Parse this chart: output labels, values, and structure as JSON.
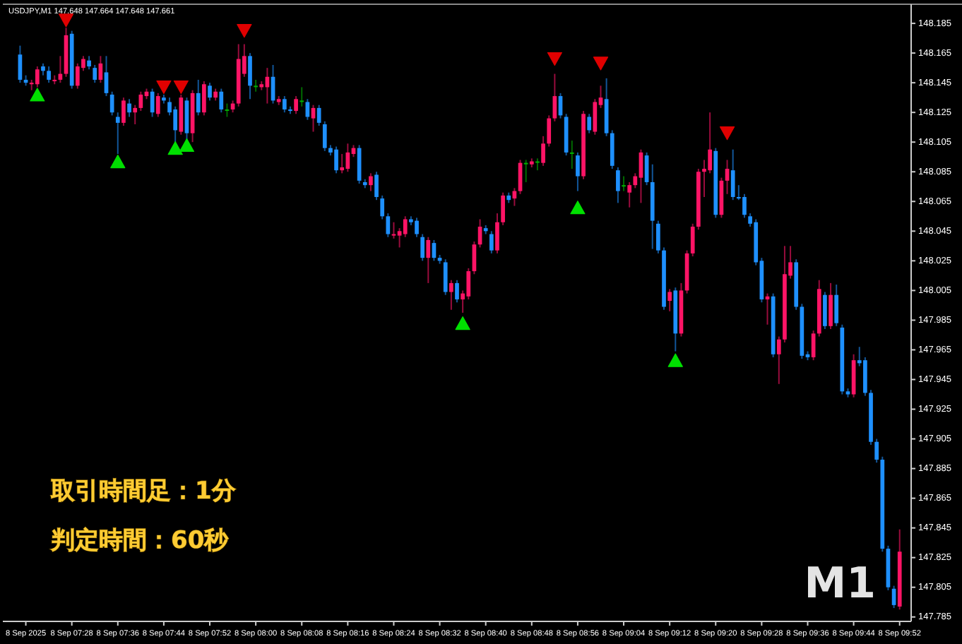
{
  "chart_data": {
    "type": "candlestick",
    "title": "USDJPY,M1  147.648 147.664 147.648 147.661",
    "annotations": [
      "取引時間足：1分",
      "判定時間：60秒",
      "M1"
    ],
    "x": [
      "2025-09-08T07:19",
      "2025-09-08T07:20",
      "2025-09-08T07:21",
      "2025-09-08T07:22",
      "2025-09-08T07:23",
      "2025-09-08T07:24",
      "2025-09-08T07:25",
      "2025-09-08T07:26",
      "2025-09-08T07:27",
      "2025-09-08T07:28",
      "2025-09-08T07:29",
      "2025-09-08T07:30",
      "2025-09-08T07:31",
      "2025-09-08T07:32",
      "2025-09-08T07:33",
      "2025-09-08T07:34",
      "2025-09-08T07:35",
      "2025-09-08T07:36",
      "2025-09-08T07:37",
      "2025-09-08T07:38",
      "2025-09-08T07:39",
      "2025-09-08T07:40",
      "2025-09-08T07:41",
      "2025-09-08T07:42",
      "2025-09-08T07:43",
      "2025-09-08T07:44",
      "2025-09-08T07:45",
      "2025-09-08T07:46",
      "2025-09-08T07:47",
      "2025-09-08T07:48",
      "2025-09-08T07:49",
      "2025-09-08T07:50",
      "2025-09-08T07:51",
      "2025-09-08T07:52",
      "2025-09-08T07:53",
      "2025-09-08T07:54",
      "2025-09-08T07:55",
      "2025-09-08T07:56",
      "2025-09-08T07:57",
      "2025-09-08T07:58",
      "2025-09-08T07:59",
      "2025-09-08T08:00",
      "2025-09-08T08:01",
      "2025-09-08T08:02",
      "2025-09-08T08:03",
      "2025-09-08T08:04",
      "2025-09-08T08:05",
      "2025-09-08T08:06",
      "2025-09-08T08:07",
      "2025-09-08T08:08",
      "2025-09-08T08:09",
      "2025-09-08T08:10",
      "2025-09-08T08:11",
      "2025-09-08T08:12",
      "2025-09-08T08:13",
      "2025-09-08T08:14",
      "2025-09-08T08:15",
      "2025-09-08T08:16",
      "2025-09-08T08:17",
      "2025-09-08T08:18",
      "2025-09-08T08:19",
      "2025-09-08T08:20",
      "2025-09-08T08:21",
      "2025-09-08T08:22",
      "2025-09-08T08:23",
      "2025-09-08T08:24",
      "2025-09-08T08:25",
      "2025-09-08T08:26",
      "2025-09-08T08:27",
      "2025-09-08T08:28",
      "2025-09-08T08:29",
      "2025-09-08T08:30",
      "2025-09-08T08:31",
      "2025-09-08T08:32",
      "2025-09-08T08:33",
      "2025-09-08T08:34",
      "2025-09-08T08:35",
      "2025-09-08T08:36",
      "2025-09-08T08:37",
      "2025-09-08T08:38",
      "2025-09-08T08:39",
      "2025-09-08T08:40",
      "2025-09-08T08:41",
      "2025-09-08T08:42",
      "2025-09-08T08:43",
      "2025-09-08T08:44",
      "2025-09-08T08:45",
      "2025-09-08T08:46",
      "2025-09-08T08:47",
      "2025-09-08T08:48",
      "2025-09-08T08:49",
      "2025-09-08T08:50",
      "2025-09-08T08:51",
      "2025-09-08T08:52",
      "2025-09-08T08:53",
      "2025-09-08T08:54",
      "2025-09-08T08:55",
      "2025-09-08T08:56",
      "2025-09-08T08:57",
      "2025-09-08T08:58",
      "2025-09-08T08:59",
      "2025-09-08T09:00",
      "2025-09-08T09:01",
      "2025-09-08T09:02",
      "2025-09-08T09:03",
      "2025-09-08T09:04",
      "2025-09-08T09:05",
      "2025-09-08T09:06",
      "2025-09-08T09:07",
      "2025-09-08T09:08",
      "2025-09-08T09:09",
      "2025-09-08T09:10",
      "2025-09-08T09:11",
      "2025-09-08T09:12",
      "2025-09-08T09:13",
      "2025-09-08T09:14",
      "2025-09-08T09:15",
      "2025-09-08T09:16",
      "2025-09-08T09:17",
      "2025-09-08T09:18",
      "2025-09-08T09:19",
      "2025-09-08T09:20",
      "2025-09-08T09:21",
      "2025-09-08T09:22",
      "2025-09-08T09:23",
      "2025-09-08T09:24",
      "2025-09-08T09:25",
      "2025-09-08T09:26",
      "2025-09-08T09:27",
      "2025-09-08T09:28",
      "2025-09-08T09:29",
      "2025-09-08T09:30",
      "2025-09-08T09:31",
      "2025-09-08T09:32",
      "2025-09-08T09:33",
      "2025-09-08T09:34",
      "2025-09-08T09:35",
      "2025-09-08T09:36",
      "2025-09-08T09:37",
      "2025-09-08T09:38",
      "2025-09-08T09:39",
      "2025-09-08T09:40",
      "2025-09-08T09:41",
      "2025-09-08T09:42",
      "2025-09-08T09:43",
      "2025-09-08T09:44",
      "2025-09-08T09:45",
      "2025-09-08T09:46",
      "2025-09-08T09:47",
      "2025-09-08T09:48",
      "2025-09-08T09:49",
      "2025-09-08T09:50",
      "2025-09-08T09:51",
      "2025-09-08T09:52"
    ],
    "ohlc": [
      [
        148.164,
        148.17,
        148.145,
        148.147
      ],
      [
        148.147,
        148.15,
        148.143,
        148.145
      ],
      [
        148.144,
        148.147,
        148.14,
        148.145
      ],
      [
        148.144,
        148.156,
        148.142,
        148.154
      ],
      [
        148.156,
        148.158,
        148.15,
        148.153
      ],
      [
        148.153,
        148.156,
        148.145,
        148.147
      ],
      [
        148.146,
        148.15,
        148.144,
        148.147
      ],
      [
        148.147,
        148.163,
        148.145,
        148.151
      ],
      [
        148.151,
        148.182,
        148.149,
        148.177
      ],
      [
        148.178,
        148.18,
        148.141,
        148.143
      ],
      [
        148.143,
        148.158,
        148.141,
        148.156
      ],
      [
        148.155,
        148.163,
        148.153,
        148.161
      ],
      [
        148.16,
        148.163,
        148.154,
        148.156
      ],
      [
        148.155,
        148.157,
        148.145,
        148.147
      ],
      [
        148.147,
        148.163,
        148.145,
        148.158
      ],
      [
        148.152,
        148.163,
        148.136,
        148.138
      ],
      [
        148.137,
        148.139,
        148.123,
        148.125
      ],
      [
        148.122,
        148.125,
        148.097,
        148.118
      ],
      [
        148.118,
        148.135,
        148.116,
        148.133
      ],
      [
        148.131,
        148.134,
        148.122,
        148.125
      ],
      [
        148.125,
        148.13,
        148.117,
        148.128
      ],
      [
        148.128,
        148.139,
        148.126,
        148.137
      ],
      [
        148.136,
        148.141,
        148.134,
        148.139
      ],
      [
        148.139,
        148.141,
        148.122,
        148.125
      ],
      [
        148.124,
        148.138,
        148.122,
        148.136
      ],
      [
        148.135,
        148.137,
        148.131,
        148.133
      ],
      [
        148.132,
        148.135,
        148.123,
        148.125
      ],
      [
        148.127,
        148.129,
        148.105,
        148.113
      ],
      [
        148.112,
        148.137,
        148.11,
        148.135
      ],
      [
        148.133,
        148.135,
        148.105,
        148.111
      ],
      [
        148.111,
        148.14,
        148.105,
        148.138
      ],
      [
        148.138,
        148.147,
        148.123,
        148.125
      ],
      [
        148.125,
        148.146,
        148.123,
        148.144
      ],
      [
        148.143,
        148.145,
        148.133,
        148.135
      ],
      [
        148.135,
        148.141,
        148.133,
        148.139
      ],
      [
        148.139,
        148.141,
        148.125,
        148.127
      ],
      [
        148.127,
        148.131,
        148.122,
        148.127
      ],
      [
        148.127,
        148.133,
        148.125,
        148.131
      ],
      [
        148.131,
        148.171,
        148.129,
        148.161
      ],
      [
        148.151,
        148.171,
        148.149,
        148.163
      ],
      [
        148.163,
        148.165,
        148.134,
        148.143
      ],
      [
        148.143,
        148.147,
        148.139,
        148.143
      ],
      [
        148.142,
        148.146,
        148.14,
        148.144
      ],
      [
        148.142,
        148.155,
        148.131,
        148.149
      ],
      [
        148.149,
        148.157,
        148.131,
        148.133
      ],
      [
        148.132,
        148.136,
        148.13,
        148.134
      ],
      [
        148.134,
        148.136,
        148.125,
        148.127
      ],
      [
        148.127,
        148.129,
        148.124,
        148.126
      ],
      [
        148.126,
        148.136,
        148.124,
        148.134
      ],
      [
        148.133,
        148.142,
        148.129,
        148.133
      ],
      [
        148.132,
        148.134,
        148.12,
        148.122
      ],
      [
        148.121,
        148.13,
        148.112,
        148.128
      ],
      [
        148.128,
        148.13,
        148.116,
        148.118
      ],
      [
        148.117,
        148.119,
        148.099,
        148.101
      ],
      [
        148.101,
        148.103,
        148.096,
        148.098
      ],
      [
        148.1,
        148.102,
        148.084,
        148.086
      ],
      [
        148.086,
        148.097,
        148.084,
        148.088
      ],
      [
        148.087,
        148.104,
        148.085,
        148.098
      ],
      [
        148.097,
        148.103,
        148.095,
        148.101
      ],
      [
        148.101,
        148.103,
        148.077,
        148.079
      ],
      [
        148.078,
        148.08,
        148.074,
        148.076
      ],
      [
        148.076,
        148.084,
        148.072,
        148.082
      ],
      [
        148.083,
        148.085,
        148.066,
        148.068
      ],
      [
        148.067,
        148.069,
        148.053,
        148.055
      ],
      [
        148.055,
        148.057,
        148.041,
        148.043
      ],
      [
        148.042,
        148.051,
        148.04,
        148.043
      ],
      [
        148.042,
        148.047,
        148.034,
        148.045
      ],
      [
        148.043,
        148.055,
        148.041,
        148.053
      ],
      [
        148.053,
        148.055,
        148.049,
        148.051
      ],
      [
        148.052,
        148.054,
        148.041,
        148.043
      ],
      [
        148.041,
        148.043,
        148.025,
        148.027
      ],
      [
        148.027,
        148.041,
        148.01,
        148.039
      ],
      [
        148.037,
        148.039,
        148.025,
        148.027
      ],
      [
        148.027,
        148.029,
        148.023,
        148.025
      ],
      [
        148.024,
        148.026,
        148.002,
        148.004
      ],
      [
        148.004,
        148.012,
        147.992,
        148.01
      ],
      [
        148.01,
        148.012,
        147.997,
        147.999
      ],
      [
        147.999,
        148.005,
        147.99,
        148.003
      ],
      [
        148.001,
        148.02,
        147.999,
        148.018
      ],
      [
        148.018,
        148.038,
        148.016,
        148.036
      ],
      [
        148.036,
        148.053,
        148.034,
        148.048
      ],
      [
        148.047,
        148.049,
        148.043,
        148.045
      ],
      [
        148.043,
        148.045,
        148.03,
        148.032
      ],
      [
        148.032,
        148.057,
        148.03,
        148.051
      ],
      [
        148.051,
        148.071,
        148.049,
        148.069
      ],
      [
        148.069,
        148.071,
        148.064,
        148.066
      ],
      [
        148.067,
        148.074,
        148.062,
        148.072
      ],
      [
        148.072,
        148.093,
        148.07,
        148.091
      ],
      [
        148.091,
        148.093,
        148.078,
        148.091
      ],
      [
        148.09,
        148.094,
        148.088,
        148.092
      ],
      [
        148.092,
        148.094,
        148.086,
        148.092
      ],
      [
        148.091,
        148.109,
        148.089,
        148.104
      ],
      [
        148.104,
        148.123,
        148.102,
        148.121
      ],
      [
        148.121,
        148.151,
        148.119,
        148.136
      ],
      [
        148.136,
        148.138,
        148.121,
        148.123
      ],
      [
        148.122,
        148.124,
        148.096,
        148.098
      ],
      [
        148.098,
        148.106,
        148.087,
        148.098
      ],
      [
        148.096,
        148.098,
        148.072,
        148.082
      ],
      [
        148.082,
        148.126,
        148.08,
        148.124
      ],
      [
        148.122,
        148.124,
        148.111,
        148.113
      ],
      [
        148.112,
        148.134,
        148.11,
        148.132
      ],
      [
        148.13,
        148.143,
        148.128,
        148.135
      ],
      [
        148.134,
        148.148,
        148.109,
        148.111
      ],
      [
        148.111,
        148.113,
        148.087,
        148.089
      ],
      [
        148.086,
        148.088,
        148.064,
        148.072
      ],
      [
        148.076,
        148.082,
        148.072,
        148.076
      ],
      [
        148.071,
        148.078,
        148.061,
        148.076
      ],
      [
        148.076,
        148.084,
        148.074,
        148.082
      ],
      [
        148.081,
        148.1,
        148.064,
        148.098
      ],
      [
        148.096,
        148.098,
        148.076,
        148.078
      ],
      [
        148.078,
        148.09,
        148.033,
        148.052
      ],
      [
        148.05,
        148.052,
        148.03,
        148.032
      ],
      [
        148.032,
        148.034,
        147.992,
        147.994
      ],
      [
        147.998,
        148.006,
        147.991,
        148.004
      ],
      [
        148.005,
        148.007,
        147.964,
        147.976
      ],
      [
        147.976,
        148.01,
        147.974,
        148.005
      ],
      [
        148.005,
        148.032,
        148.003,
        148.03
      ],
      [
        148.03,
        148.05,
        148.028,
        148.048
      ],
      [
        148.048,
        148.087,
        148.046,
        148.085
      ],
      [
        148.085,
        148.093,
        148.068,
        148.087
      ],
      [
        148.086,
        148.125,
        148.084,
        148.1
      ],
      [
        148.099,
        148.101,
        148.054,
        148.056
      ],
      [
        148.056,
        148.081,
        148.054,
        148.079
      ],
      [
        148.079,
        148.093,
        148.07,
        148.087
      ],
      [
        148.086,
        148.1,
        148.066,
        148.068
      ],
      [
        148.068,
        148.076,
        148.066,
        148.067
      ],
      [
        148.068,
        148.07,
        148.054,
        148.056
      ],
      [
        148.055,
        148.057,
        148.048,
        148.05
      ],
      [
        148.051,
        148.053,
        148.022,
        148.024
      ],
      [
        148.025,
        148.027,
        147.997,
        147.999
      ],
      [
        147.999,
        148.003,
        147.982,
        148.001
      ],
      [
        148.001,
        148.003,
        147.96,
        147.962
      ],
      [
        147.962,
        147.974,
        147.942,
        147.972
      ],
      [
        147.972,
        148.035,
        147.97,
        148.016
      ],
      [
        148.015,
        148.035,
        148.013,
        148.024
      ],
      [
        148.024,
        148.026,
        147.992,
        147.994
      ],
      [
        147.994,
        147.996,
        147.959,
        147.961
      ],
      [
        147.962,
        147.964,
        147.958,
        147.96
      ],
      [
        147.96,
        147.978,
        147.958,
        147.976
      ],
      [
        147.976,
        148.012,
        147.974,
        148.006
      ],
      [
        148.002,
        148.004,
        147.979,
        147.981
      ],
      [
        147.981,
        148.01,
        147.979,
        148.002
      ],
      [
        148.002,
        148.009,
        147.981,
        147.983
      ],
      [
        147.98,
        147.982,
        147.935,
        147.937
      ],
      [
        147.937,
        147.939,
        147.933,
        147.935
      ],
      [
        147.935,
        147.962,
        147.933,
        147.958
      ],
      [
        147.958,
        147.967,
        147.954,
        147.956
      ],
      [
        147.958,
        147.96,
        147.934,
        147.936
      ],
      [
        147.936,
        147.938,
        147.901,
        147.903
      ],
      [
        147.903,
        147.905,
        147.889,
        147.891
      ],
      [
        147.891,
        147.893,
        147.829,
        147.831
      ],
      [
        147.831,
        147.833,
        147.803,
        147.805
      ],
      [
        147.804,
        147.806,
        147.791,
        147.793
      ],
      [
        147.792,
        147.844,
        147.79,
        147.829
      ]
    ],
    "colors": [
      "#1e90ff",
      "#1e90ff",
      "#ff1466",
      "#ff1466",
      "#1e90ff",
      "#1e90ff",
      "#ff1466",
      "#ff1466",
      "#ff1466",
      "#1e90ff",
      "#ff1466",
      "#ff1466",
      "#1e90ff",
      "#1e90ff",
      "#ff1466",
      "#1e90ff",
      "#1e90ff",
      "#1e90ff",
      "#ff1466",
      "#1e90ff",
      "#ff1466",
      "#ff1466",
      "#ff1466",
      "#1e90ff",
      "#ff1466",
      "#1e90ff",
      "#1e90ff",
      "#1e90ff",
      "#ff1466",
      "#1e90ff",
      "#ff1466",
      "#1e90ff",
      "#ff1466",
      "#1e90ff",
      "#ff1466",
      "#1e90ff",
      "#00b000",
      "#ff1466",
      "#ff1466",
      "#ff1466",
      "#1e90ff",
      "#00b000",
      "#ff1466",
      "#ff1466",
      "#1e90ff",
      "#ff1466",
      "#1e90ff",
      "#1e90ff",
      "#ff1466",
      "#00b000",
      "#1e90ff",
      "#ff1466",
      "#1e90ff",
      "#1e90ff",
      "#1e90ff",
      "#1e90ff",
      "#ff1466",
      "#ff1466",
      "#ff1466",
      "#1e90ff",
      "#1e90ff",
      "#ff1466",
      "#1e90ff",
      "#1e90ff",
      "#1e90ff",
      "#ff1466",
      "#ff1466",
      "#ff1466",
      "#1e90ff",
      "#1e90ff",
      "#1e90ff",
      "#ff1466",
      "#1e90ff",
      "#1e90ff",
      "#1e90ff",
      "#ff1466",
      "#1e90ff",
      "#ff1466",
      "#ff1466",
      "#ff1466",
      "#ff1466",
      "#1e90ff",
      "#1e90ff",
      "#ff1466",
      "#ff1466",
      "#1e90ff",
      "#ff1466",
      "#ff1466",
      "#00b000",
      "#ff1466",
      "#00b000",
      "#ff1466",
      "#ff1466",
      "#ff1466",
      "#1e90ff",
      "#1e90ff",
      "#00b000",
      "#1e90ff",
      "#ff1466",
      "#1e90ff",
      "#ff1466",
      "#ff1466",
      "#1e90ff",
      "#1e90ff",
      "#1e90ff",
      "#00b000",
      "#ff1466",
      "#ff1466",
      "#ff1466",
      "#1e90ff",
      "#1e90ff",
      "#1e90ff",
      "#1e90ff",
      "#ff1466",
      "#1e90ff",
      "#ff1466",
      "#ff1466",
      "#ff1466",
      "#ff1466",
      "#ff1466",
      "#ff1466",
      "#1e90ff",
      "#ff1466",
      "#ff1466",
      "#1e90ff",
      "#1e90ff",
      "#1e90ff",
      "#1e90ff",
      "#1e90ff",
      "#1e90ff",
      "#ff1466",
      "#1e90ff",
      "#ff1466",
      "#ff1466",
      "#ff1466",
      "#1e90ff",
      "#1e90ff",
      "#1e90ff",
      "#ff1466",
      "#ff1466",
      "#1e90ff",
      "#ff1466",
      "#1e90ff",
      "#1e90ff",
      "#1e90ff",
      "#ff1466",
      "#1e90ff",
      "#1e90ff",
      "#1e90ff",
      "#1e90ff",
      "#1e90ff",
      "#1e90ff",
      "#1e90ff",
      "#ff1466"
    ],
    "series": [
      {
        "type": "scatter",
        "color": "#e00000",
        "marker": "triangle",
        "x": [
          "2025-09-08T07:27",
          "2025-09-08T07:44",
          "2025-09-08T07:47",
          "2025-09-08T07:58",
          "2025-09-08T08:52",
          "2025-09-08T09:00",
          "2025-09-08T09:22"
        ],
        "values": [
          148.187,
          148.142,
          148.142,
          148.18,
          148.161,
          148.158,
          148.111
        ]
      },
      {
        "type": "scatter",
        "color": "#00e000",
        "marker": "triangle",
        "x": [
          "2025-09-08T07:22",
          "2025-09-08T07:36",
          "2025-09-08T07:46",
          "2025-09-08T07:48",
          "2025-09-08T08:36",
          "2025-09-08T08:56",
          "2025-09-08T09:13"
        ],
        "values": [
          148.137,
          148.092,
          148.101,
          148.103,
          147.983,
          148.061,
          147.958
        ]
      }
    ],
    "xlim": [
      "2025-09-08T07:16",
      "2025-09-08T09:54"
    ],
    "xticks": [
      {
        "value": "2025-09-08T07:20",
        "label": "8 Sep 2025"
      },
      {
        "value": "2025-09-08T07:28",
        "label": "8 Sep 07:28"
      },
      {
        "value": "2025-09-08T07:36",
        "label": "8 Sep 07:36"
      },
      {
        "value": "2025-09-08T07:44",
        "label": "8 Sep 07:44"
      },
      {
        "value": "2025-09-08T07:52",
        "label": "8 Sep 07:52"
      },
      {
        "value": "2025-09-08T08:00",
        "label": "8 Sep 08:00"
      },
      {
        "value": "2025-09-08T08:08",
        "label": "8 Sep 08:08"
      },
      {
        "value": "2025-09-08T08:16",
        "label": "8 Sep 08:16"
      },
      {
        "value": "2025-09-08T08:24",
        "label": "8 Sep 08:24"
      },
      {
        "value": "2025-09-08T08:32",
        "label": "8 Sep 08:32"
      },
      {
        "value": "2025-09-08T08:40",
        "label": "8 Sep 08:40"
      },
      {
        "value": "2025-09-08T08:48",
        "label": "8 Sep 08:48"
      },
      {
        "value": "2025-09-08T08:56",
        "label": "8 Sep 08:56"
      },
      {
        "value": "2025-09-08T09:04",
        "label": "8 Sep 09:04"
      },
      {
        "value": "2025-09-08T09:12",
        "label": "8 Sep 09:12"
      },
      {
        "value": "2025-09-08T09:20",
        "label": "8 Sep 09:20"
      },
      {
        "value": "2025-09-08T09:28",
        "label": "8 Sep 09:28"
      },
      {
        "value": "2025-09-08T09:36",
        "label": "8 Sep 09:36"
      },
      {
        "value": "2025-09-08T09:44",
        "label": "8 Sep 09:44"
      },
      {
        "value": "2025-09-08T09:52",
        "label": "8 Sep 09:52"
      }
    ],
    "ylim": [
      147.782,
      148.196
    ],
    "yticks": [
      147.785,
      147.805,
      147.825,
      147.845,
      147.865,
      147.885,
      147.905,
      147.925,
      147.945,
      147.965,
      147.985,
      148.005,
      148.025,
      148.045,
      148.065,
      148.085,
      148.105,
      148.125,
      148.145,
      148.165,
      148.185
    ]
  }
}
